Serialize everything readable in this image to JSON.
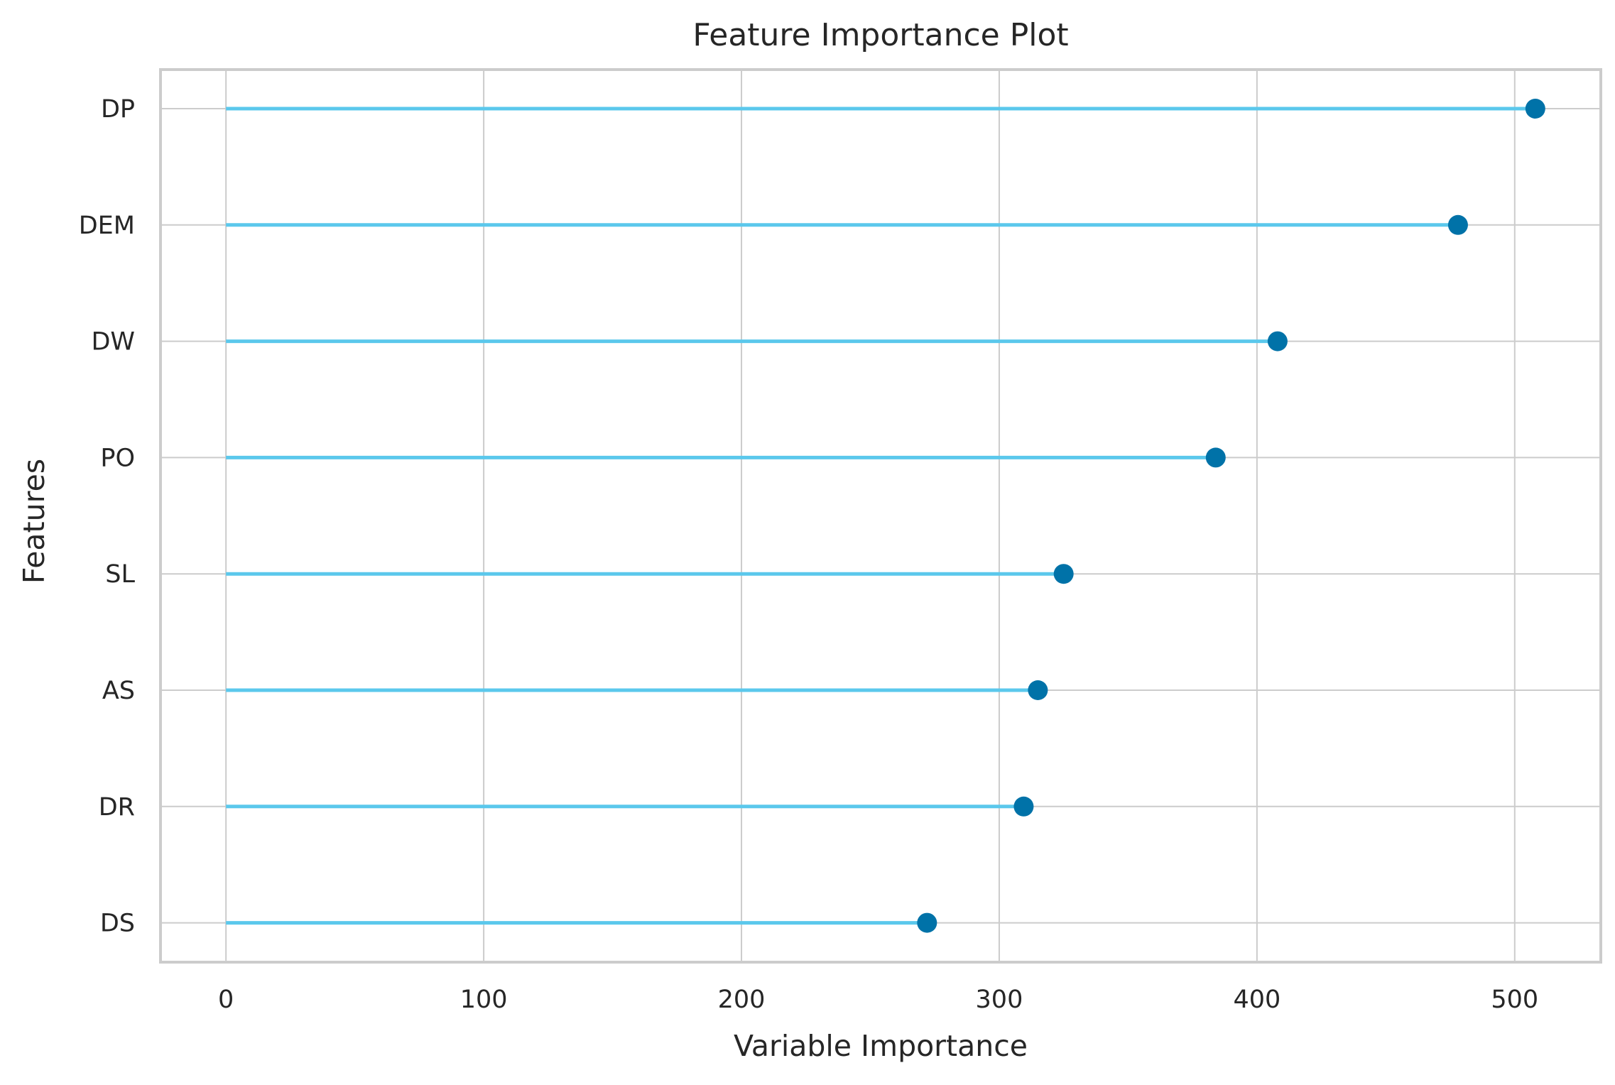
{
  "chart_data": {
    "type": "lollipop",
    "title": "Feature Importance Plot",
    "x_label": "Variable Importance",
    "y_label": "Features",
    "categories": [
      "DP",
      "DEM",
      "DW",
      "PO",
      "SL",
      "AS",
      "DR",
      "DS"
    ],
    "values": [
      508,
      478,
      408,
      384,
      325,
      315,
      309.5,
      272
    ],
    "stem_color": "#5bc8ec",
    "color": "#0072a8",
    "xlim": [
      -25.4,
      533.4
    ],
    "xticks": [
      0,
      100,
      200,
      300,
      400,
      500
    ],
    "grid": true
  }
}
